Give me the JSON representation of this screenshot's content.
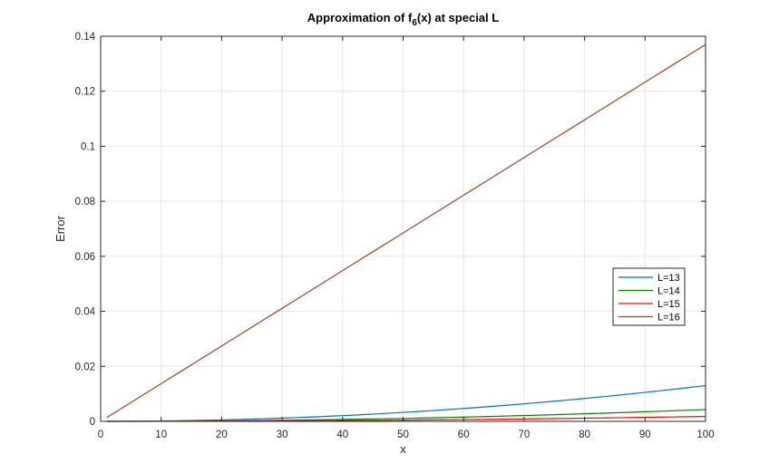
{
  "chart_data": {
    "type": "line",
    "title": {
      "main": "Approximation of f",
      "sub": "6",
      "rest": "(x) at special L"
    },
    "xlabel": "x",
    "ylabel": "Error",
    "xlim": [
      0,
      100
    ],
    "ylim": [
      0,
      0.14
    ],
    "xticks": [
      0,
      10,
      20,
      30,
      40,
      50,
      60,
      70,
      80,
      90,
      100
    ],
    "yticks": [
      0,
      0.02,
      0.04,
      0.06,
      0.08,
      0.1,
      0.12,
      0.14
    ],
    "xtick_labels": [
      "0",
      "10",
      "20",
      "30",
      "40",
      "50",
      "60",
      "70",
      "80",
      "90",
      "100"
    ],
    "ytick_labels": [
      "0",
      "0.02",
      "0.04",
      "0.06",
      "0.08",
      "0.1",
      "0.12",
      "0.14"
    ],
    "grid": true,
    "legend_position": "right",
    "x": [
      1,
      10,
      20,
      30,
      40,
      50,
      60,
      70,
      80,
      90,
      100
    ],
    "series": [
      {
        "name": "L=13",
        "color": "#0072BD",
        "values": [
          1.3e-06,
          0.00013,
          0.00052,
          0.00117,
          0.00208,
          0.00325,
          0.00468,
          0.00637,
          0.00832,
          0.01053,
          0.013
        ]
      },
      {
        "name": "L=14",
        "color": "#008000",
        "values": [
          4.3e-07,
          4.3e-05,
          0.00017,
          0.00039,
          0.00069,
          0.00108,
          0.00155,
          0.00211,
          0.00276,
          0.00349,
          0.0043
        ]
      },
      {
        "name": "L=15",
        "color": "#FF0000",
        "values": [
          1.8e-07,
          1.8e-05,
          7e-05,
          0.00016,
          0.00029,
          0.00045,
          0.00065,
          0.00088,
          0.00115,
          0.00146,
          0.0018
        ]
      },
      {
        "name": "L=16",
        "color": "#A2441B",
        "values": [
          0.00137,
          0.0137,
          0.0274,
          0.0411,
          0.0548,
          0.0685,
          0.0822,
          0.0959,
          0.1096,
          0.1233,
          0.137
        ]
      }
    ]
  }
}
